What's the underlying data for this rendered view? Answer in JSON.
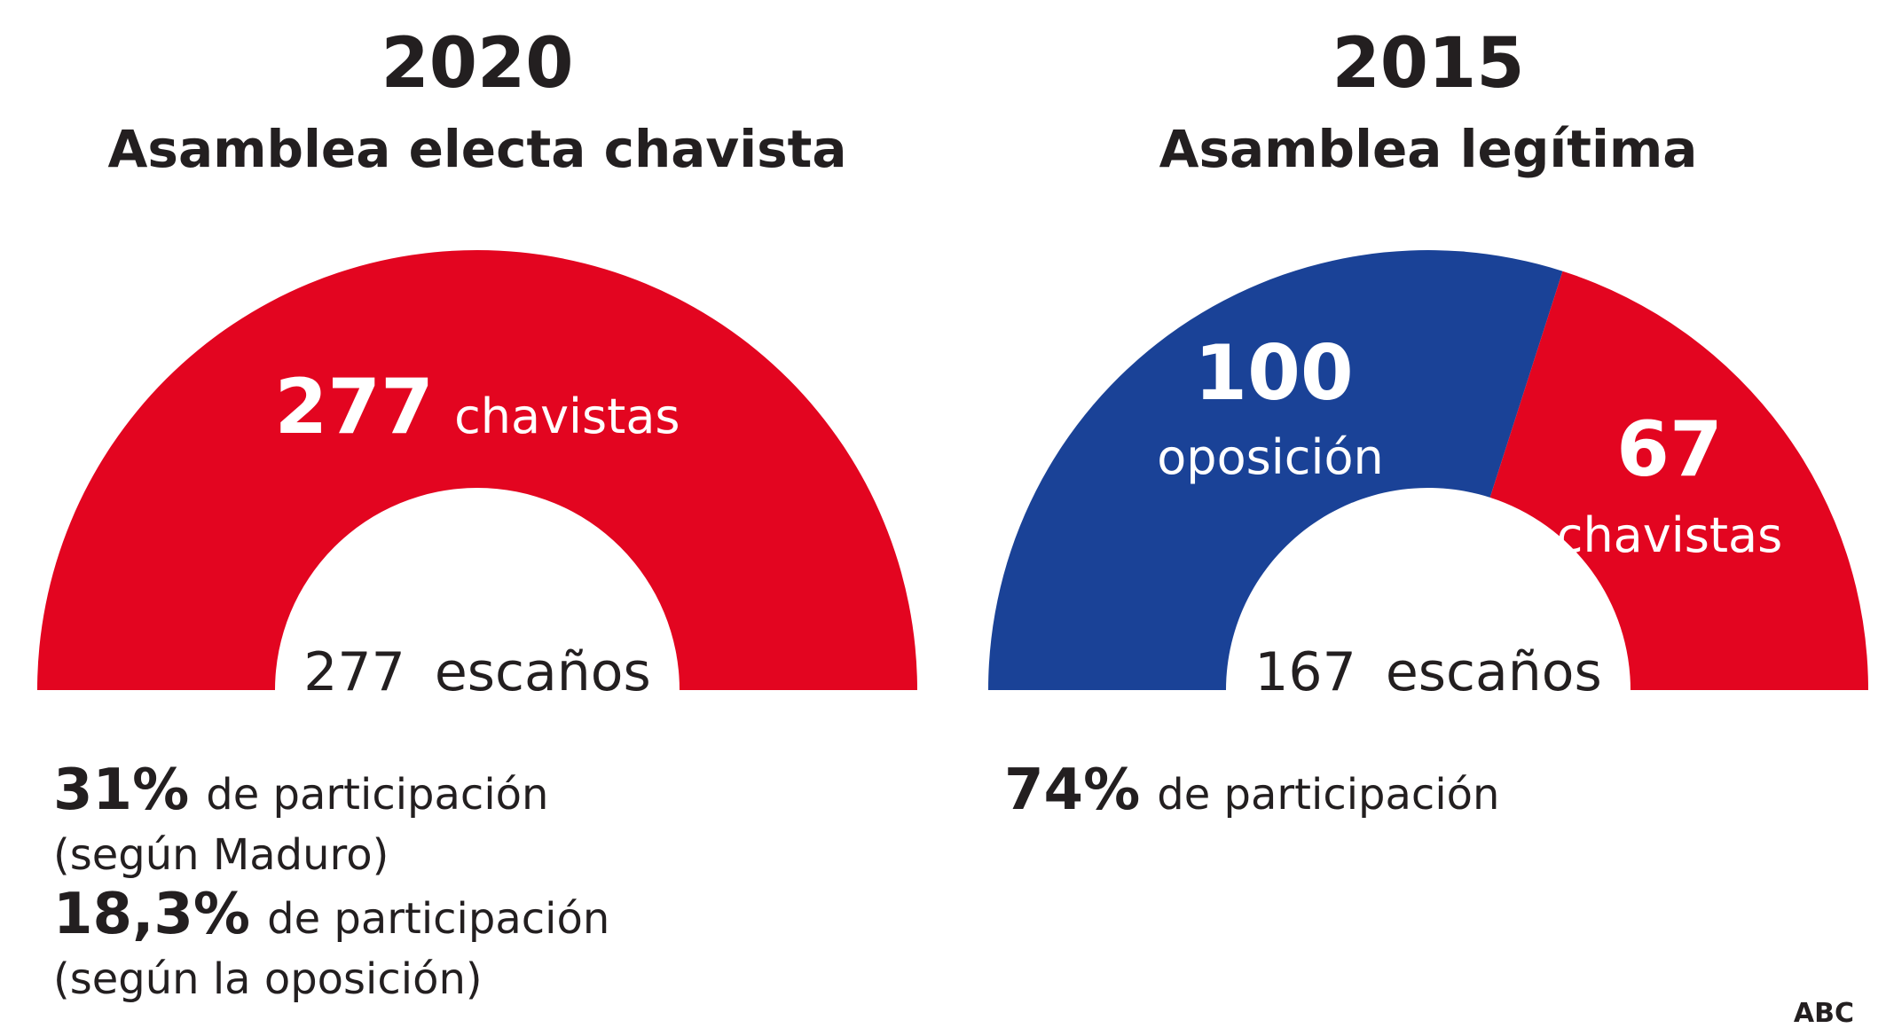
{
  "colors": {
    "chavistas": "#e30520",
    "oposicion": "#1a4297",
    "text": "#231f20"
  },
  "chart_data": [
    {
      "type": "pie",
      "subtype": "half-donut",
      "year": "2020",
      "title": "Asamblea electa chavista",
      "total_seats": 277,
      "total_label": "escaños",
      "slices": [
        {
          "label": "chavistas",
          "value": 277,
          "color": "#e30520"
        }
      ],
      "notes": [
        {
          "value": "31%",
          "text": "de participación",
          "source": "(según Maduro)"
        },
        {
          "value": "18,3%",
          "text": "de participación",
          "source": "(según la oposición)"
        }
      ]
    },
    {
      "type": "pie",
      "subtype": "half-donut",
      "year": "2015",
      "title": "Asamblea legítima",
      "total_seats": 167,
      "total_label": "escaños",
      "slices": [
        {
          "label": "oposición",
          "value": 100,
          "color": "#1a4297"
        },
        {
          "label": "chavistas",
          "value": 67,
          "color": "#e30520"
        }
      ],
      "notes": [
        {
          "value": "74%",
          "text": "de participación"
        }
      ]
    }
  ],
  "credit": "ABC"
}
